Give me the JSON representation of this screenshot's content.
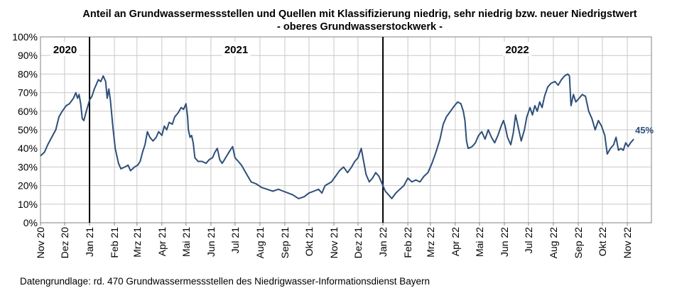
{
  "chart_data": {
    "type": "line",
    "title": "Anteil an Grundwassermessstellen und Quellen mit Klassifizierung niedrig, sehr niedrig bzw. neuer Niedrigstwert",
    "subtitle": "- oberes Grundwasserstockwerk -",
    "ylim": [
      0,
      100
    ],
    "y_ticks": [
      "0%",
      "10%",
      "20%",
      "30%",
      "40%",
      "50%",
      "60%",
      "70%",
      "80%",
      "90%",
      "100%"
    ],
    "x_ticks": [
      "Nov 20",
      "Dez 20",
      "Jan 21",
      "Feb 21",
      "Mrz 21",
      "Apr 21",
      "Mai 21",
      "Jun 21",
      "Jul 21",
      "Aug 21",
      "Sep 21",
      "Okt 21",
      "Nov 21",
      "Dez 21",
      "Jan 22",
      "Feb 22",
      "Mrz 22",
      "Apr 22",
      "Mai 22",
      "Jun 22",
      "Jul 22",
      "Aug 22",
      "Sep 22",
      "Okt 22",
      "Nov 22"
    ],
    "year_labels": [
      "2020",
      "2021",
      "2022"
    ],
    "year_dividers": [
      "Jan 21",
      "Jan 22"
    ],
    "grid": true,
    "line_color": "#2e4f7a",
    "end_label": "45%",
    "series": [
      {
        "points": [
          [
            "2020-11-01",
            36
          ],
          [
            "2020-11-06",
            38
          ],
          [
            "2020-11-10",
            42
          ],
          [
            "2020-11-15",
            46
          ],
          [
            "2020-11-20",
            50
          ],
          [
            "2020-11-24",
            57
          ],
          [
            "2020-11-28",
            60
          ],
          [
            "2020-12-03",
            63
          ],
          [
            "2020-12-07",
            64
          ],
          [
            "2020-12-12",
            67
          ],
          [
            "2020-12-15",
            70
          ],
          [
            "2020-12-17",
            67
          ],
          [
            "2020-12-19",
            69
          ],
          [
            "2020-12-21",
            64
          ],
          [
            "2020-12-23",
            56
          ],
          [
            "2020-12-25",
            55
          ],
          [
            "2020-12-28",
            60
          ],
          [
            "2021-01-01",
            66
          ],
          [
            "2021-01-04",
            68
          ],
          [
            "2021-01-07",
            72
          ],
          [
            "2021-01-09",
            74
          ],
          [
            "2021-01-12",
            77
          ],
          [
            "2021-01-15",
            76
          ],
          [
            "2021-01-18",
            79
          ],
          [
            "2021-01-21",
            76
          ],
          [
            "2021-01-23",
            67
          ],
          [
            "2021-01-25",
            72
          ],
          [
            "2021-01-27",
            66
          ],
          [
            "2021-01-30",
            52
          ],
          [
            "2021-02-02",
            40
          ],
          [
            "2021-02-04",
            36
          ],
          [
            "2021-02-06",
            32
          ],
          [
            "2021-02-09",
            29
          ],
          [
            "2021-02-14",
            30
          ],
          [
            "2021-02-18",
            31
          ],
          [
            "2021-02-21",
            28
          ],
          [
            "2021-02-26",
            30
          ],
          [
            "2021-03-02",
            31
          ],
          [
            "2021-03-05",
            33
          ],
          [
            "2021-03-08",
            38
          ],
          [
            "2021-03-11",
            42
          ],
          [
            "2021-03-14",
            49
          ],
          [
            "2021-03-17",
            46
          ],
          [
            "2021-03-21",
            44
          ],
          [
            "2021-03-25",
            46
          ],
          [
            "2021-03-28",
            49
          ],
          [
            "2021-04-01",
            47
          ],
          [
            "2021-04-04",
            52
          ],
          [
            "2021-04-07",
            50
          ],
          [
            "2021-04-10",
            54
          ],
          [
            "2021-04-14",
            53
          ],
          [
            "2021-04-17",
            57
          ],
          [
            "2021-04-21",
            59
          ],
          [
            "2021-04-25",
            62
          ],
          [
            "2021-04-28",
            61
          ],
          [
            "2021-05-01",
            64
          ],
          [
            "2021-05-03",
            57
          ],
          [
            "2021-05-04",
            50
          ],
          [
            "2021-05-06",
            46
          ],
          [
            "2021-05-08",
            47
          ],
          [
            "2021-05-10",
            43
          ],
          [
            "2021-05-12",
            35
          ],
          [
            "2021-05-16",
            33
          ],
          [
            "2021-05-21",
            33
          ],
          [
            "2021-05-26",
            32
          ],
          [
            "2021-05-30",
            34
          ],
          [
            "2021-06-03",
            35
          ],
          [
            "2021-06-06",
            38
          ],
          [
            "2021-06-09",
            40
          ],
          [
            "2021-06-12",
            34
          ],
          [
            "2021-06-15",
            32
          ],
          [
            "2021-06-18",
            34
          ],
          [
            "2021-06-22",
            37
          ],
          [
            "2021-06-25",
            39
          ],
          [
            "2021-06-28",
            41
          ],
          [
            "2021-07-01",
            35
          ],
          [
            "2021-07-05",
            33
          ],
          [
            "2021-07-09",
            31
          ],
          [
            "2021-07-13",
            28
          ],
          [
            "2021-07-17",
            25
          ],
          [
            "2021-07-21",
            22
          ],
          [
            "2021-07-27",
            21
          ],
          [
            "2021-08-03",
            19
          ],
          [
            "2021-08-10",
            18
          ],
          [
            "2021-08-17",
            17
          ],
          [
            "2021-08-24",
            18
          ],
          [
            "2021-08-30",
            17
          ],
          [
            "2021-09-05",
            16
          ],
          [
            "2021-09-11",
            15
          ],
          [
            "2021-09-18",
            13
          ],
          [
            "2021-09-25",
            14
          ],
          [
            "2021-10-01",
            16
          ],
          [
            "2021-10-07",
            17
          ],
          [
            "2021-10-13",
            18
          ],
          [
            "2021-10-17",
            16
          ],
          [
            "2021-10-21",
            20
          ],
          [
            "2021-10-25",
            21
          ],
          [
            "2021-10-29",
            22
          ],
          [
            "2021-11-03",
            25
          ],
          [
            "2021-11-08",
            28
          ],
          [
            "2021-11-13",
            30
          ],
          [
            "2021-11-18",
            27
          ],
          [
            "2021-11-23",
            30
          ],
          [
            "2021-11-27",
            33
          ],
          [
            "2021-12-01",
            35
          ],
          [
            "2021-12-05",
            40
          ],
          [
            "2021-12-08",
            33
          ],
          [
            "2021-12-11",
            26
          ],
          [
            "2021-12-15",
            22
          ],
          [
            "2021-12-19",
            24
          ],
          [
            "2021-12-23",
            27
          ],
          [
            "2021-12-27",
            25
          ],
          [
            "2021-12-31",
            21
          ],
          [
            "2022-01-04",
            17
          ],
          [
            "2022-01-08",
            15
          ],
          [
            "2022-01-12",
            13
          ],
          [
            "2022-01-17",
            16
          ],
          [
            "2022-01-22",
            18
          ],
          [
            "2022-01-27",
            20
          ],
          [
            "2022-02-01",
            24
          ],
          [
            "2022-02-06",
            22
          ],
          [
            "2022-02-11",
            23
          ],
          [
            "2022-02-16",
            22
          ],
          [
            "2022-02-21",
            25
          ],
          [
            "2022-02-26",
            27
          ],
          [
            "2022-03-03",
            32
          ],
          [
            "2022-03-08",
            38
          ],
          [
            "2022-03-13",
            45
          ],
          [
            "2022-03-17",
            53
          ],
          [
            "2022-03-21",
            57
          ],
          [
            "2022-03-26",
            60
          ],
          [
            "2022-03-31",
            63
          ],
          [
            "2022-04-04",
            65
          ],
          [
            "2022-04-08",
            64
          ],
          [
            "2022-04-11",
            60
          ],
          [
            "2022-04-13",
            55
          ],
          [
            "2022-04-15",
            44
          ],
          [
            "2022-04-17",
            40
          ],
          [
            "2022-04-22",
            41
          ],
          [
            "2022-04-26",
            43
          ],
          [
            "2022-04-30",
            47
          ],
          [
            "2022-05-04",
            49
          ],
          [
            "2022-05-08",
            45
          ],
          [
            "2022-05-12",
            50
          ],
          [
            "2022-05-16",
            46
          ],
          [
            "2022-05-20",
            43
          ],
          [
            "2022-05-24",
            47
          ],
          [
            "2022-05-28",
            52
          ],
          [
            "2022-05-31",
            55
          ],
          [
            "2022-06-02",
            52
          ],
          [
            "2022-06-05",
            46
          ],
          [
            "2022-06-09",
            42
          ],
          [
            "2022-06-12",
            48
          ],
          [
            "2022-06-15",
            58
          ],
          [
            "2022-06-18",
            52
          ],
          [
            "2022-06-22",
            44
          ],
          [
            "2022-06-26",
            50
          ],
          [
            "2022-06-29",
            57
          ],
          [
            "2022-07-03",
            62
          ],
          [
            "2022-07-06",
            58
          ],
          [
            "2022-07-09",
            63
          ],
          [
            "2022-07-12",
            60
          ],
          [
            "2022-07-15",
            65
          ],
          [
            "2022-07-18",
            62
          ],
          [
            "2022-07-21",
            68
          ],
          [
            "2022-07-25",
            73
          ],
          [
            "2022-07-29",
            75
          ],
          [
            "2022-08-03",
            76
          ],
          [
            "2022-08-07",
            74
          ],
          [
            "2022-08-11",
            77
          ],
          [
            "2022-08-15",
            79
          ],
          [
            "2022-08-19",
            80
          ],
          [
            "2022-08-21",
            79
          ],
          [
            "2022-08-23",
            63
          ],
          [
            "2022-08-26",
            69
          ],
          [
            "2022-08-29",
            65
          ],
          [
            "2022-09-02",
            67
          ],
          [
            "2022-09-06",
            69
          ],
          [
            "2022-09-10",
            68
          ],
          [
            "2022-09-14",
            60
          ],
          [
            "2022-09-18",
            56
          ],
          [
            "2022-09-22",
            50
          ],
          [
            "2022-09-26",
            55
          ],
          [
            "2022-09-30",
            52
          ],
          [
            "2022-10-04",
            47
          ],
          [
            "2022-10-07",
            37
          ],
          [
            "2022-10-11",
            40
          ],
          [
            "2022-10-15",
            42
          ],
          [
            "2022-10-18",
            46
          ],
          [
            "2022-10-21",
            39
          ],
          [
            "2022-10-24",
            40
          ],
          [
            "2022-10-27",
            39
          ],
          [
            "2022-10-30",
            43
          ],
          [
            "2022-11-02",
            41
          ],
          [
            "2022-11-05",
            43
          ],
          [
            "2022-11-09",
            45
          ]
        ]
      }
    ]
  },
  "footer": "Datengrundlage:  rd. 470 Grundwassermessstellen  des Niedrigwasser-Informationsdienst  Bayern"
}
